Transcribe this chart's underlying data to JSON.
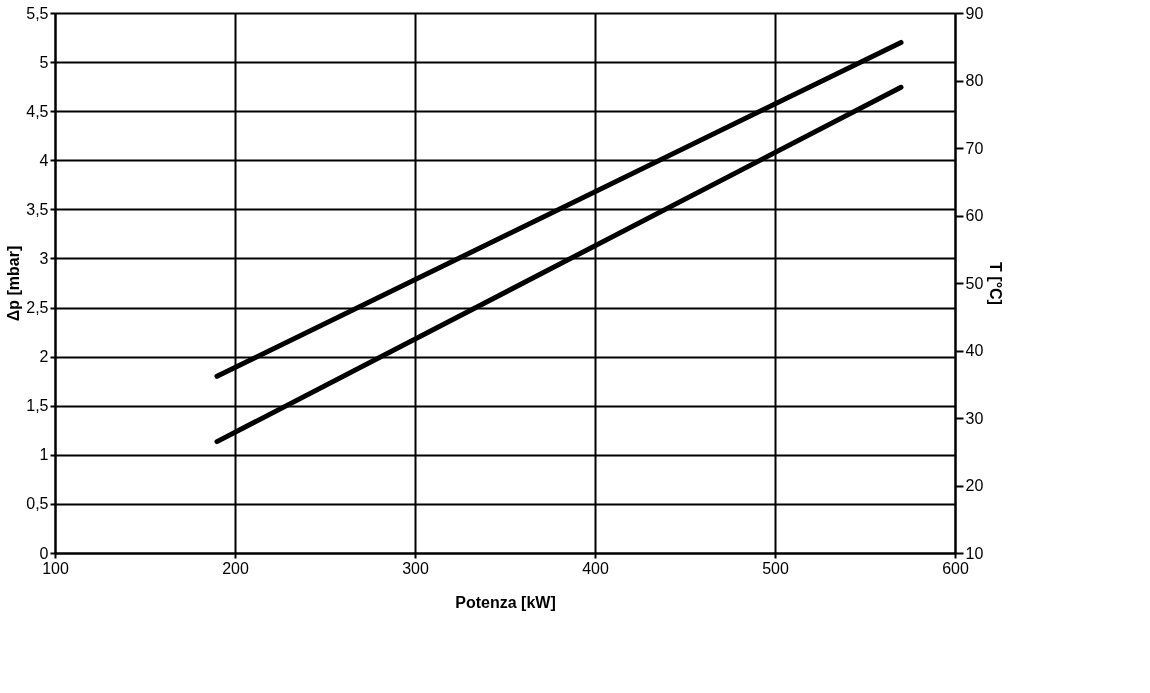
{
  "chart_data": {
    "type": "line",
    "xlabel": "Potenza [kW]",
    "ylabel": "Δp [mbar]",
    "y2label": "T [°C]",
    "x": [
      190,
      570
    ],
    "series": [
      {
        "values": [
          1.8,
          5.2
        ],
        "color": "#000000"
      },
      {
        "values": [
          26.5,
          79
        ],
        "color": "#000000",
        "axis": "y2"
      }
    ],
    "xlim": [
      100,
      600
    ],
    "xticks": [
      100,
      200,
      300,
      400,
      500,
      600
    ],
    "ylim": [
      0,
      5.5
    ],
    "yticks": [
      {
        "value": 0,
        "label": "0"
      },
      {
        "value": 0.5,
        "label": "0,5"
      },
      {
        "value": 1,
        "label": "1"
      },
      {
        "value": 1.5,
        "label": "1,5"
      },
      {
        "value": 2,
        "label": "2"
      },
      {
        "value": 2.5,
        "label": "2,5"
      },
      {
        "value": 3,
        "label": "3"
      },
      {
        "value": 3.5,
        "label": "3,5"
      },
      {
        "value": 4,
        "label": "4"
      },
      {
        "value": 4.5,
        "label": "4,5"
      },
      {
        "value": 5,
        "label": "5"
      },
      {
        "value": 5.5,
        "label": "5,5"
      }
    ],
    "y2lim": [
      10,
      90
    ],
    "y2ticks": [
      10,
      20,
      30,
      40,
      50,
      60,
      70,
      80,
      90
    ],
    "grid": true,
    "legend": false,
    "marker": "none",
    "line_style": "solid"
  }
}
